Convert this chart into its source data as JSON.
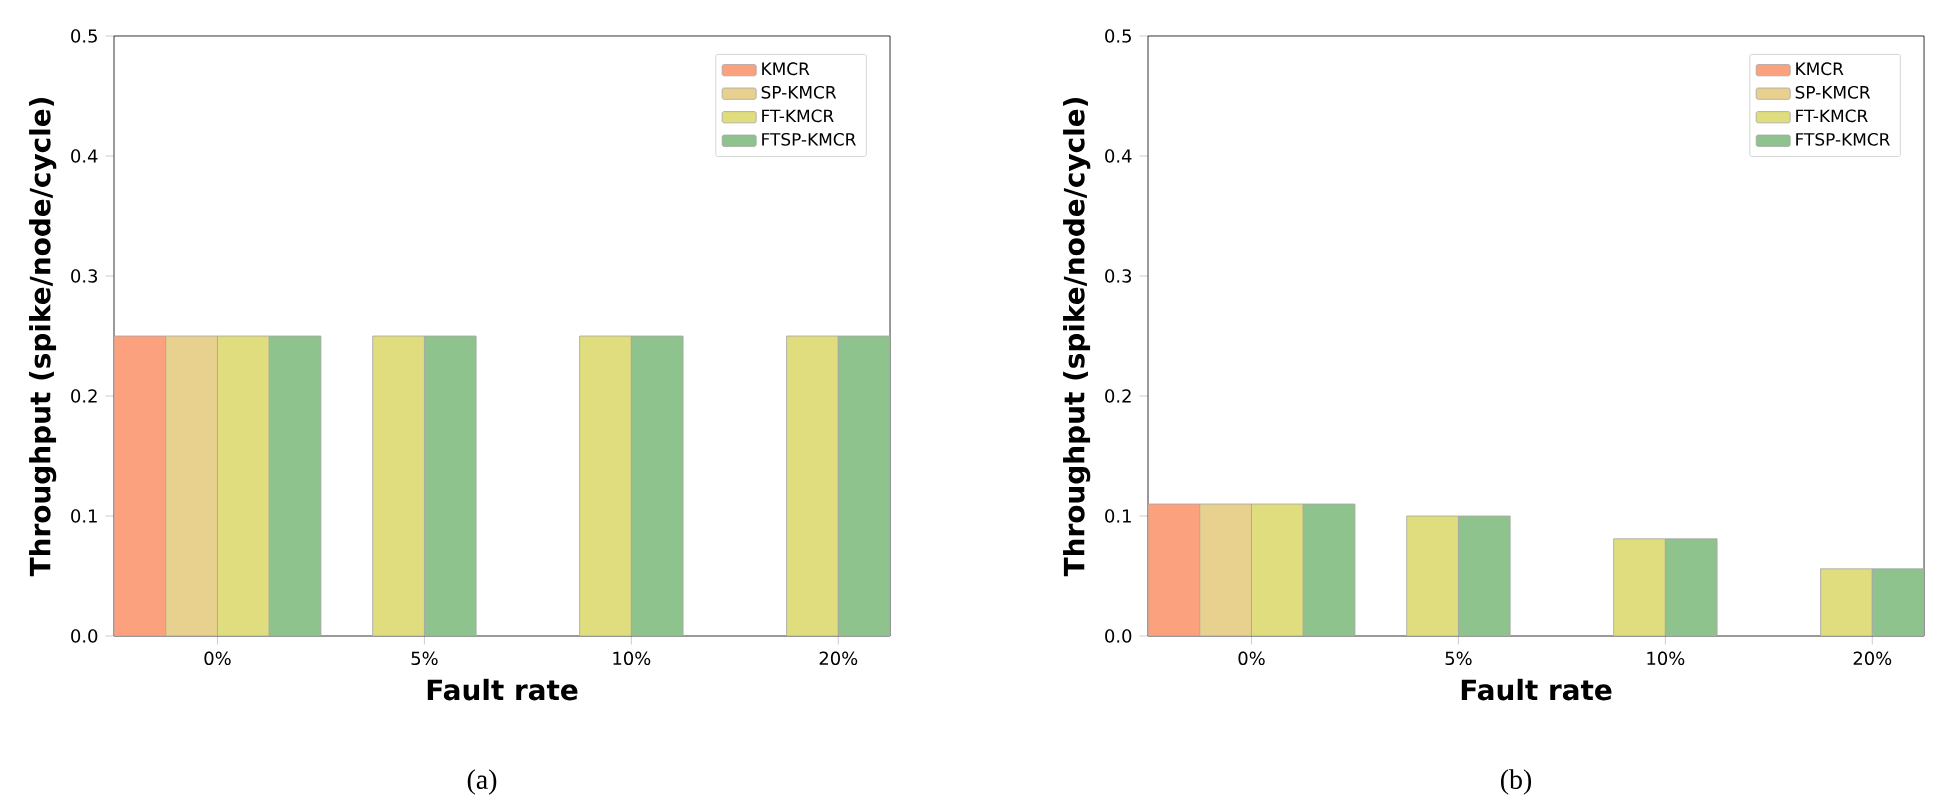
{
  "chart_data": [
    {
      "type": "bar",
      "categories": [
        "0%",
        "5%",
        "10%",
        "20%"
      ],
      "xlabel": "Fault rate",
      "ylabel": "Throughput (spike/node/cycle)",
      "series": [
        {
          "name": "KMCR",
          "color": "#fca17d",
          "values": [
            0.25,
            null,
            null,
            null
          ]
        },
        {
          "name": "SP-KMCR",
          "color": "#e8d08e",
          "values": [
            0.25,
            null,
            null,
            null
          ]
        },
        {
          "name": "FT-KMCR",
          "color": "#dfdd7d",
          "values": [
            0.25,
            0.25,
            0.25,
            0.25
          ]
        },
        {
          "name": "FTSP-KMCR",
          "color": "#8fc38d",
          "values": [
            0.25,
            0.25,
            0.25,
            0.25
          ]
        }
      ],
      "ylim": [
        0,
        0.5
      ],
      "yticks": [
        {
          "value": 0,
          "label": "0.0"
        },
        0.1,
        0.2,
        0.3,
        0.4,
        0.5
      ],
      "legend": "top right",
      "grid": false,
      "annotations": [
        "(a)"
      ]
    },
    {
      "type": "bar",
      "categories": [
        "0%",
        "5%",
        "10%",
        "20%"
      ],
      "xlabel": "Fault rate",
      "ylabel": "Throughput (spike/node/cycle)",
      "series": [
        {
          "name": "KMCR",
          "color": "#fca17d",
          "values": [
            0.11,
            null,
            null,
            null
          ]
        },
        {
          "name": "SP-KMCR",
          "color": "#e8d08e",
          "values": [
            0.11,
            null,
            null,
            null
          ]
        },
        {
          "name": "FT-KMCR",
          "color": "#dfdd7d",
          "values": [
            0.11,
            0.1,
            0.081,
            0.056
          ]
        },
        {
          "name": "FTSP-KMCR",
          "color": "#8fc38d",
          "values": [
            0.11,
            0.1,
            0.081,
            0.056
          ]
        }
      ],
      "ylim": [
        0,
        0.5
      ],
      "yticks": [
        {
          "value": 0,
          "label": "0.0"
        },
        0.1,
        0.2,
        0.3,
        0.4,
        0.5
      ],
      "legend": "top right",
      "grid": false,
      "annotations": [
        "(b)"
      ]
    }
  ]
}
